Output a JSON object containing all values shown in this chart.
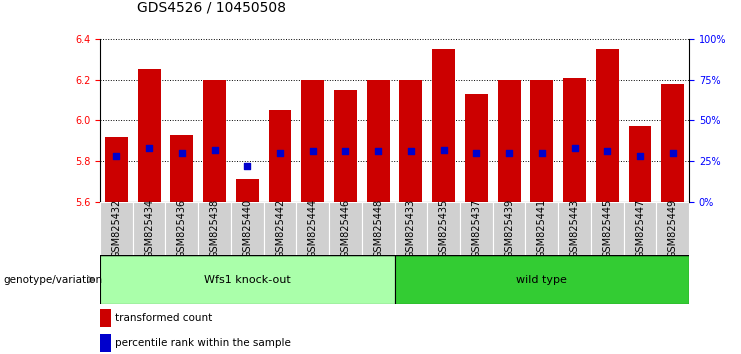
{
  "title": "GDS4526 / 10450508",
  "samples": [
    "GSM825432",
    "GSM825434",
    "GSM825436",
    "GSM825438",
    "GSM825440",
    "GSM825442",
    "GSM825444",
    "GSM825446",
    "GSM825448",
    "GSM825433",
    "GSM825435",
    "GSM825437",
    "GSM825439",
    "GSM825441",
    "GSM825443",
    "GSM825445",
    "GSM825447",
    "GSM825449"
  ],
  "transformed_counts": [
    5.92,
    6.25,
    5.93,
    6.2,
    5.71,
    6.05,
    6.2,
    6.15,
    6.2,
    6.2,
    6.35,
    6.13,
    6.2,
    6.2,
    6.21,
    6.35,
    5.97,
    6.18
  ],
  "percentile_ranks": [
    28,
    33,
    30,
    32,
    22,
    30,
    31,
    31,
    31,
    31,
    32,
    30,
    30,
    30,
    33,
    31,
    28,
    30
  ],
  "bar_bottom": 5.6,
  "ylim": [
    5.6,
    6.4
  ],
  "y_ticks_left": [
    5.6,
    5.8,
    6.0,
    6.2,
    6.4
  ],
  "y_ticks_right": [
    0,
    25,
    50,
    75,
    100
  ],
  "bar_color": "#cc0000",
  "dot_color": "#0000cc",
  "background_color": "#ffffff",
  "xtick_bg_color": "#d0d0d0",
  "group1_label": "Wfs1 knock-out",
  "group2_label": "wild type",
  "group1_color": "#aaffaa",
  "group2_color": "#33cc33",
  "group1_count": 9,
  "group2_count": 9,
  "legend_red_label": "transformed count",
  "legend_blue_label": "percentile rank within the sample",
  "genotype_label": "genotype/variation",
  "title_fontsize": 10,
  "tick_fontsize": 7,
  "label_fontsize": 8,
  "bar_width": 0.7,
  "dot_size": 20
}
